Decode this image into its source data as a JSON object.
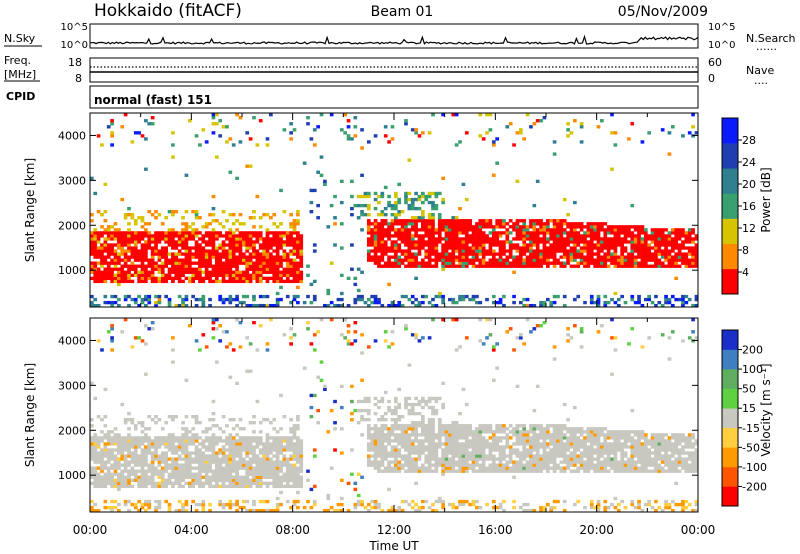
{
  "header": {
    "station": "Hokkaido (fitACF)",
    "beam": "Beam 01",
    "date": "05/Nov/2009"
  },
  "strips": {
    "nsky": {
      "label": "N.Sky",
      "tick_top": "10^5",
      "tick_bottom": "10^0",
      "right_tick_top": "10^5",
      "right_tick_bottom": "10^0",
      "right_label": "N.Search",
      "right_legend": "......"
    },
    "freq": {
      "label_line1": "Freq.",
      "label_line2": "[MHz]",
      "tick_top": "18",
      "tick_bottom": "8",
      "right_tick_top": "60",
      "right_tick_bottom": "0",
      "right_label": "Nave",
      "right_legend": "...."
    },
    "cpid": {
      "label": "CPID",
      "text": "normal (fast) 151"
    }
  },
  "chart_data": [
    {
      "type": "heatmap",
      "name": "power",
      "ylabel": "Slant Range [km]",
      "ylim": [
        180,
        4500
      ],
      "yticks": [
        "1000",
        "2000",
        "3000",
        "4000"
      ],
      "xlim": [
        0,
        24
      ],
      "colorbar": {
        "label": "Power [dB]",
        "ticks": [
          "4",
          "8",
          "12",
          "16",
          "20",
          "24",
          "28"
        ],
        "colors": [
          "#0a1aff",
          "#1f3fb0",
          "#2f7f8f",
          "#3a9f6f",
          "#d7c400",
          "#ff8a00",
          "#ff0000"
        ]
      }
    },
    {
      "type": "heatmap",
      "name": "velocity",
      "ylabel": "Slant Range [km]",
      "ylim": [
        180,
        4500
      ],
      "yticks": [
        "1000",
        "2000",
        "3000",
        "4000"
      ],
      "xlabel": "Time UT",
      "xticks": [
        "00:00",
        "04:00",
        "08:00",
        "12:00",
        "16:00",
        "20:00",
        "00:00"
      ],
      "xlim": [
        0,
        24
      ],
      "colorbar": {
        "label": "Velocity [m s⁻¹]",
        "ticks": [
          "200",
          "100",
          "50",
          "15",
          "-15",
          "-50",
          "-100",
          "-200"
        ],
        "colors": [
          "#1a2fc8",
          "#3f7fbf",
          "#5fae5f",
          "#5fd03f",
          "#c8c8c0",
          "#ffcf3f",
          "#ff9a00",
          "#ff5500",
          "#ff0000"
        ]
      }
    }
  ]
}
